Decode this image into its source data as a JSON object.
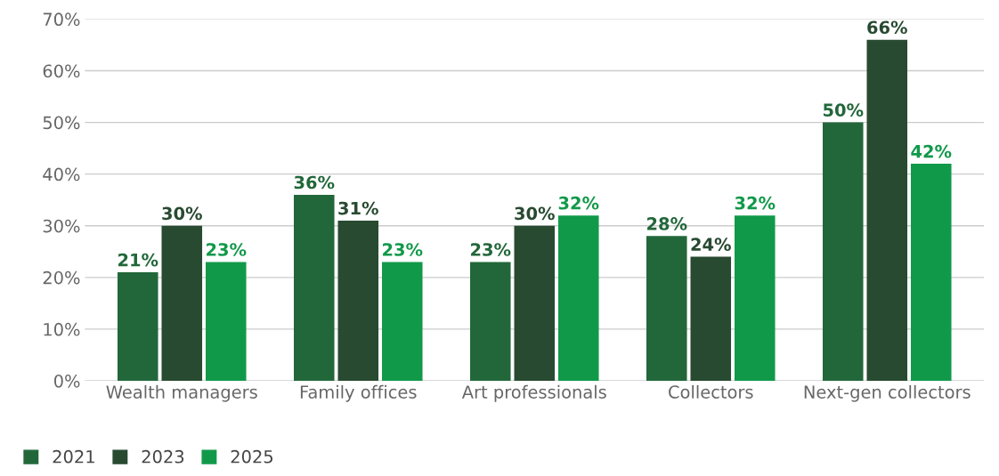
{
  "chart_data": {
    "type": "bar",
    "categories": [
      "Wealth managers",
      "Family offices",
      "Art professionals",
      "Collectors",
      "Next-gen collectors"
    ],
    "series": [
      {
        "name": "2021",
        "color": "#22673a",
        "values": [
          21,
          36,
          23,
          28,
          50
        ],
        "value_labels": [
          "21%",
          "36%",
          "23%",
          "28%",
          "50%"
        ]
      },
      {
        "name": "2023",
        "color": "#284a31",
        "values": [
          30,
          31,
          30,
          24,
          66
        ],
        "value_labels": [
          "30%",
          "31%",
          "30%",
          "24%",
          "66%"
        ]
      },
      {
        "name": "2025",
        "color": "#11994a",
        "values": [
          23,
          23,
          32,
          32,
          42
        ],
        "value_labels": [
          "23%",
          "23%",
          "32%",
          "32%",
          "42%"
        ]
      }
    ],
    "ylim": [
      0,
      70
    ],
    "yticks": [
      {
        "value": 0,
        "label": "0%"
      },
      {
        "value": 10,
        "label": "10%"
      },
      {
        "value": 20,
        "label": "20%"
      },
      {
        "value": 30,
        "label": "30%"
      },
      {
        "value": 40,
        "label": "40%"
      },
      {
        "value": 50,
        "label": "50%"
      },
      {
        "value": 60,
        "label": "60%"
      },
      {
        "value": 70,
        "label": "70%"
      }
    ],
    "grid": "y",
    "legend": "bottom left"
  }
}
